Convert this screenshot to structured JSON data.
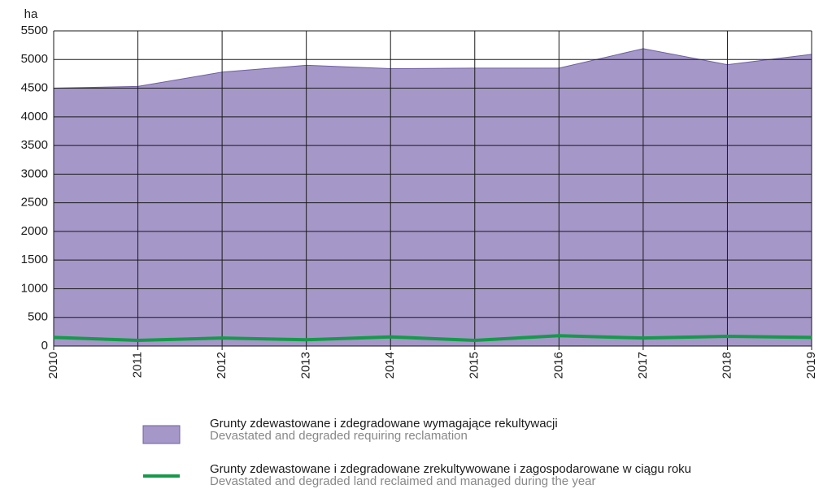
{
  "chart_data": {
    "type": "area",
    "y_label": "ha",
    "categories": [
      "2010",
      "2011",
      "2012",
      "2013",
      "2014",
      "2015",
      "2016",
      "2017",
      "2018",
      "2019"
    ],
    "series": [
      {
        "name": "Grunty zdewastowane i zdegradowane wymagające rekultywacji",
        "name_en": "Devastated and degraded requiring reclamation",
        "type": "area",
        "color": "#a597c8",
        "edge": "#6f5fa3",
        "values": [
          4500,
          4530,
          4780,
          4900,
          4840,
          4850,
          4850,
          5190,
          4910,
          5090
        ]
      },
      {
        "name": "Grunty zdewastowane i zdegradowane zrekultywowane i zagospodarowane w ciągu roku",
        "name_en": "Devastated and degraded land reclaimed and managed during the year",
        "type": "line",
        "color": "#16994a",
        "values": [
          150,
          100,
          140,
          110,
          160,
          100,
          180,
          140,
          170,
          150
        ]
      }
    ],
    "ylim": [
      0,
      5500
    ],
    "yticks": [
      0,
      500,
      1000,
      1500,
      2000,
      2500,
      3000,
      3500,
      4000,
      4500,
      5000,
      5500
    ],
    "grid": true
  }
}
